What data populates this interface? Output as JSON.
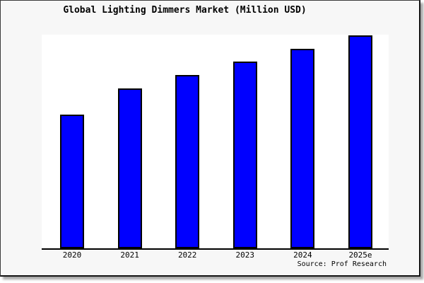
{
  "title": "Global Lighting Dimmers Market (Million USD)",
  "source_credit": "Source: Prof Research",
  "colors": {
    "bar_fill": "#0000ff",
    "bar_edge": "#000000",
    "figure_background": "#f7f7f7",
    "plot_background": "#ffffff",
    "text": "#000000"
  },
  "chart_data": {
    "type": "bar",
    "title": "Global Lighting Dimmers Market (Million USD)",
    "categories": [
      "2020",
      "2021",
      "2022",
      "2023",
      "2024",
      "2025e"
    ],
    "values": [
      62.8,
      75.1,
      81.4,
      87.7,
      93.7,
      100
    ],
    "values_note": "No y-axis ticks or data labels are shown in the chart; values are relative bar heights indexed to 2025e = 100.",
    "xlabel": "",
    "ylabel": "",
    "ylim": [
      0,
      100.3
    ],
    "grid": false,
    "legend": null,
    "bottom_spine_only": true,
    "annotations": [
      "Source: Prof Research"
    ]
  }
}
